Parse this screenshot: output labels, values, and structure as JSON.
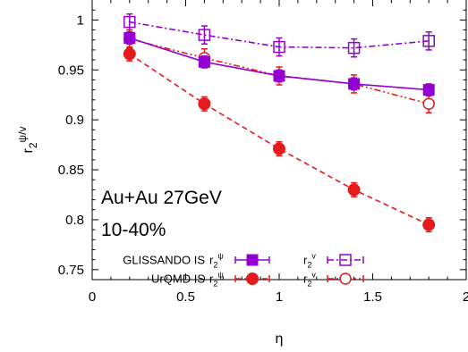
{
  "chart_data": {
    "type": "line",
    "xlabel": "η",
    "ylabel": {
      "base": "r",
      "sub": "2",
      "sup": "ψ/v"
    },
    "xlim": [
      0,
      2
    ],
    "ylim": [
      0.74,
      1.02
    ],
    "x_ticks": [
      {
        "value": 0,
        "label": "0"
      },
      {
        "value": 0.5,
        "label": "0.5"
      },
      {
        "value": 1,
        "label": "1"
      },
      {
        "value": 1.5,
        "label": "1.5"
      },
      {
        "value": 2,
        "label": "2"
      }
    ],
    "y_ticks": [
      {
        "value": 0.75,
        "label": "0.75"
      },
      {
        "value": 0.8,
        "label": "0.8"
      },
      {
        "value": 0.85,
        "label": "0.85"
      },
      {
        "value": 0.9,
        "label": "0.9"
      },
      {
        "value": 0.95,
        "label": "0.95"
      },
      {
        "value": 1.0,
        "label": "1"
      }
    ],
    "x": [
      0.2,
      0.6,
      1.0,
      1.4,
      1.8
    ],
    "series": [
      {
        "key": "glissando_psi",
        "color": "#9400d3",
        "marker": "filled-square",
        "line": "solid",
        "values": [
          0.982,
          0.958,
          0.944,
          0.936,
          0.93
        ],
        "errors": [
          0.006,
          0.006,
          0.006,
          0.006,
          0.006
        ]
      },
      {
        "key": "glissando_v",
        "color": "#9400d3",
        "marker": "open-square",
        "line": "dashdot",
        "values": [
          0.998,
          0.985,
          0.973,
          0.972,
          0.979
        ],
        "errors": [
          0.008,
          0.009,
          0.009,
          0.009,
          0.009
        ]
      },
      {
        "key": "urqmd_psi",
        "color": "#e41a1c",
        "marker": "filled-circle",
        "line": "dashed",
        "values": [
          0.966,
          0.916,
          0.871,
          0.83,
          0.795
        ],
        "errors": [
          0.007,
          0.007,
          0.007,
          0.007,
          0.007
        ]
      },
      {
        "key": "urqmd_v",
        "color": "#e41a1c",
        "marker": "open-circle",
        "line": "dashdotdot",
        "values": [
          0.981,
          0.962,
          0.944,
          0.936,
          0.916
        ],
        "errors": [
          0.009,
          0.009,
          0.009,
          0.009,
          0.009
        ]
      }
    ],
    "annotations": [
      "Au+Au 27GeV",
      "10-40%"
    ],
    "legend": {
      "placement": "bottom-left",
      "rows": [
        {
          "label": "GLISSANDO IS",
          "psi_key": "glissando_psi",
          "v_key": "glissando_v"
        },
        {
          "label": "UrQMD IS",
          "psi_key": "urqmd_psi",
          "v_key": "urqmd_v"
        }
      ],
      "psi_symbol": {
        "base": "r",
        "sub": "2",
        "sup": "ψ"
      },
      "v_symbol": {
        "base": "r",
        "sub": "2",
        "sup": "v"
      }
    },
    "grid": false
  }
}
